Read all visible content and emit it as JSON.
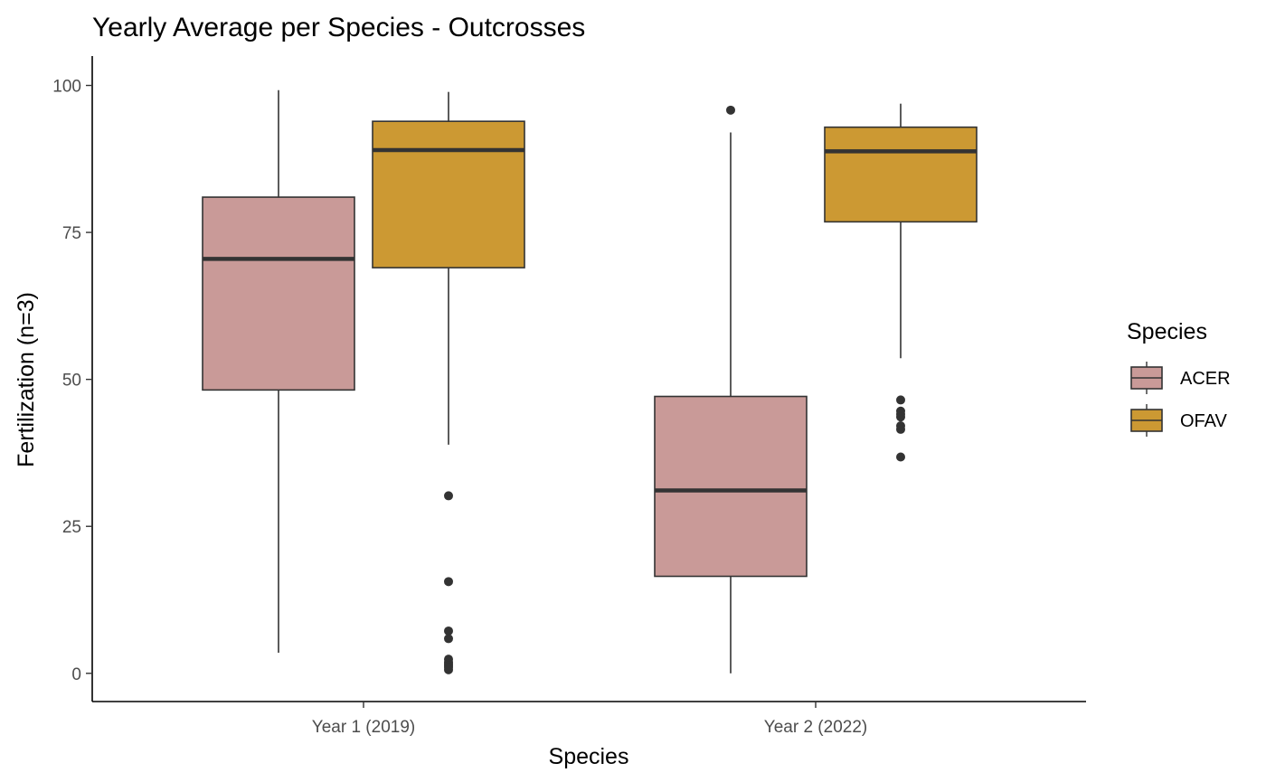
{
  "chart_data": {
    "type": "boxplot",
    "title": "Yearly Average per Species - Outcrosses",
    "xlabel": "Species",
    "ylabel": "Fertilization (n=3)",
    "categories": [
      "Year 1 (2019)",
      "Year 2 (2022)"
    ],
    "ylim": [
      -4.8,
      105
    ],
    "yticks": [
      0,
      25,
      50,
      75,
      100
    ],
    "ytick_labels": [
      "0",
      "25",
      "50",
      "75",
      "100"
    ],
    "grid": false,
    "legend": {
      "title": "Species",
      "position": "right"
    },
    "series": [
      {
        "name": "ACER",
        "color": "#c99a98",
        "boxes": [
          {
            "category": "Year 1 (2019)",
            "whisker_low": 3.5,
            "q1": 48.2,
            "median": 70.5,
            "q3": 81.0,
            "whisker_high": 99.2,
            "outliers": []
          },
          {
            "category": "Year 2 (2022)",
            "whisker_low": 0.0,
            "q1": 16.5,
            "median": 31.1,
            "q3": 47.1,
            "whisker_high": 92.0,
            "outliers": [
              95.8
            ]
          }
        ]
      },
      {
        "name": "OFAV",
        "color": "#cc9933",
        "boxes": [
          {
            "category": "Year 1 (2019)",
            "whisker_low": 38.9,
            "q1": 69.0,
            "median": 89.0,
            "q3": 93.9,
            "whisker_high": 98.9,
            "outliers": [
              30.2,
              15.6,
              7.2,
              5.9,
              2.4,
              1.9,
              1.6,
              1.3,
              1.0,
              0.6
            ]
          },
          {
            "category": "Year 2 (2022)",
            "whisker_low": 53.6,
            "q1": 76.8,
            "median": 88.8,
            "q3": 92.9,
            "whisker_high": 96.9,
            "outliers": [
              46.5,
              44.6,
              44.1,
              43.6,
              42.1,
              41.5,
              36.8
            ]
          }
        ]
      }
    ]
  }
}
